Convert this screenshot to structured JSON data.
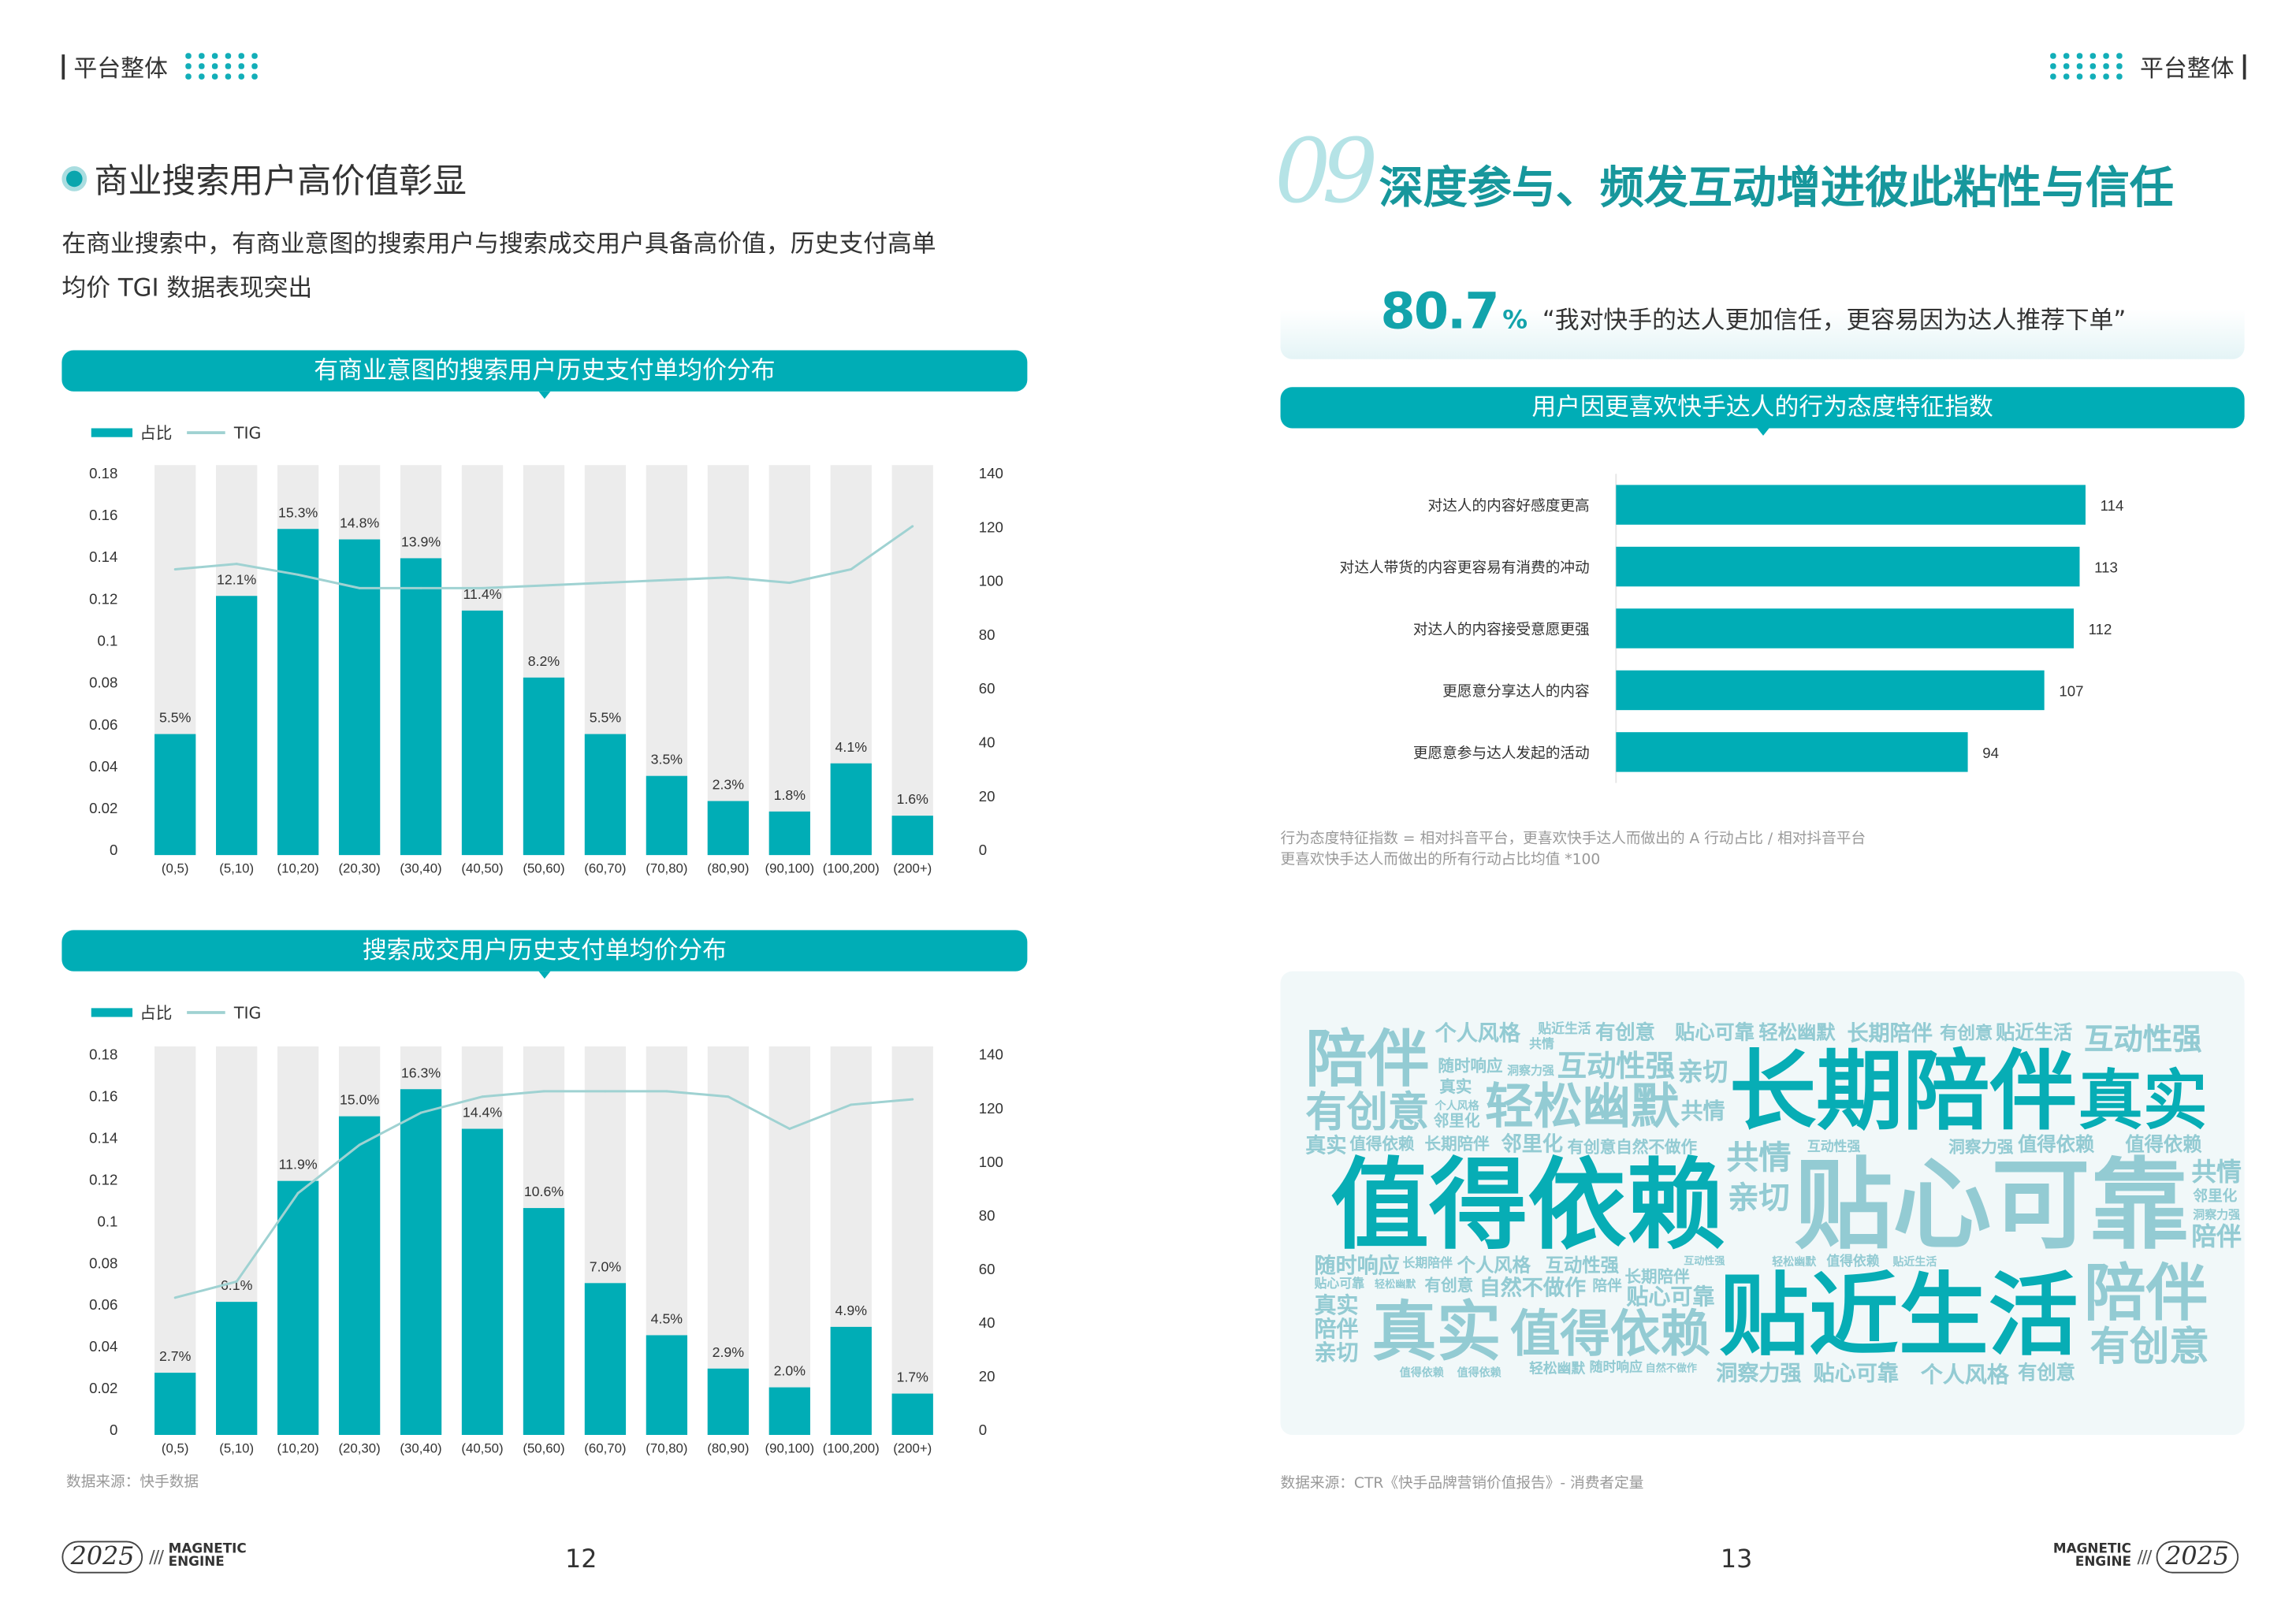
{
  "colors": {
    "accent": "#00adb6",
    "bar_bg": "#ececec",
    "tig_line": "#9fd2d2",
    "title_dark": "#17979c",
    "cloud_dark": "#07adb5",
    "cloud_light": "#93cbd3"
  },
  "left_page": {
    "header": {
      "section": "平台整体"
    },
    "heading": "商业搜索用户高价值彰显",
    "intro": [
      "在商业搜索中，有商业意图的搜索用户与搜索成交用户具备高价值，历史支付高单",
      "均价 TGI 数据表现突出"
    ],
    "source": "数据来源：快手数据",
    "page_number": "12",
    "logo": {
      "year": "2025",
      "slashes": "///",
      "line1": "MAGNETIC",
      "line2": "ENGINE"
    }
  },
  "right_page": {
    "header": {
      "section": "平台整体"
    },
    "number": "09",
    "title": "深度参与、频发互动增进彼此粘性与信任",
    "stat": {
      "value": "80.7",
      "unit": "%",
      "quote": "“我对快手的达人更加信任，更容易因为达人推荐下单”"
    },
    "footnote": [
      "行为态度特征指数 = 相对抖音平台，更喜欢快手达人而做出的 A 行动占比 / 相对抖音平台",
      "更喜欢快手达人而做出的所有行动占比均值 *100"
    ],
    "source": "数据来源：CTR《快手品牌营销价值报告》- 消费者定量",
    "page_number": "13",
    "logo": {
      "year": "2025",
      "slashes": "///",
      "line1": "MAGNETIC",
      "line2": "ENGINE"
    },
    "word_cloud": [
      {
        "t": "陪伴",
        "c": "light"
      },
      {
        "t": "个人风格",
        "c": "light"
      },
      {
        "t": "贴近生活",
        "c": "light"
      },
      {
        "t": "有创意",
        "c": "light"
      },
      {
        "t": "贴心可靠",
        "c": "light"
      },
      {
        "t": "轻松幽默",
        "c": "light"
      },
      {
        "t": "长期陪伴",
        "c": "light"
      },
      {
        "t": "有创意",
        "c": "light"
      },
      {
        "t": "贴近生活",
        "c": "light"
      },
      {
        "t": "互动性强",
        "c": "light"
      },
      {
        "t": "共情",
        "c": "light"
      },
      {
        "t": "互动性强",
        "c": "light"
      },
      {
        "t": "随时响应",
        "c": "light"
      },
      {
        "t": "洞察力强",
        "c": "light"
      },
      {
        "t": "亲切",
        "c": "light"
      },
      {
        "t": "长期陪伴",
        "c": "dark"
      },
      {
        "t": "真实",
        "c": "dark"
      },
      {
        "t": "真实",
        "c": "light"
      },
      {
        "t": "有创意",
        "c": "light"
      },
      {
        "t": "个人风格",
        "c": "light"
      },
      {
        "t": "邻里化",
        "c": "light"
      },
      {
        "t": "轻松幽默",
        "c": "light"
      },
      {
        "t": "共情",
        "c": "light"
      },
      {
        "t": "真实",
        "c": "light"
      },
      {
        "t": "值得依赖",
        "c": "light"
      },
      {
        "t": "长期陪伴",
        "c": "light"
      },
      {
        "t": "邻里化",
        "c": "light"
      },
      {
        "t": "有创意自然不做作",
        "c": "light"
      },
      {
        "t": "值得依赖",
        "c": "dark"
      },
      {
        "t": "共情",
        "c": "light"
      },
      {
        "t": "互动性强",
        "c": "light"
      },
      {
        "t": "共情",
        "c": "light"
      },
      {
        "t": "洞察力强",
        "c": "light"
      },
      {
        "t": "值得依赖",
        "c": "light"
      },
      {
        "t": "值得依赖",
        "c": "light"
      },
      {
        "t": "贴心可靠",
        "c": "light"
      },
      {
        "t": "亲切",
        "c": "light"
      },
      {
        "t": "陪伴",
        "c": "light"
      },
      {
        "t": "邻里化",
        "c": "light"
      },
      {
        "t": "洞察力强",
        "c": "light"
      },
      {
        "t": "随时响应",
        "c": "light"
      },
      {
        "t": "长期陪伴",
        "c": "light"
      },
      {
        "t": "个人风格",
        "c": "light"
      },
      {
        "t": "互动性强",
        "c": "light"
      },
      {
        "t": "互动性强",
        "c": "light"
      },
      {
        "t": "轻松幽默",
        "c": "light"
      },
      {
        "t": "值得依赖",
        "c": "light"
      },
      {
        "t": "贴近生活",
        "c": "light"
      },
      {
        "t": "长期陪伴",
        "c": "light"
      },
      {
        "t": "贴心可靠",
        "c": "light"
      },
      {
        "t": "轻松幽默",
        "c": "light"
      },
      {
        "t": "有创意",
        "c": "light"
      },
      {
        "t": "自然不做作",
        "c": "light"
      },
      {
        "t": "陪伴",
        "c": "light"
      },
      {
        "t": "贴心可靠",
        "c": "light"
      },
      {
        "t": "贴近生活",
        "c": "dark"
      },
      {
        "t": "陪伴",
        "c": "light"
      },
      {
        "t": "真实",
        "c": "light"
      },
      {
        "t": "真实",
        "c": "light"
      },
      {
        "t": "值得依赖",
        "c": "light"
      },
      {
        "t": "陪伴",
        "c": "light"
      },
      {
        "t": "有创意",
        "c": "light"
      },
      {
        "t": "亲切",
        "c": "light"
      },
      {
        "t": "值得依赖",
        "c": "light"
      },
      {
        "t": "值得依赖",
        "c": "light"
      },
      {
        "t": "轻松幽默",
        "c": "light"
      },
      {
        "t": "随时响应",
        "c": "light"
      },
      {
        "t": "自然不做作",
        "c": "light"
      },
      {
        "t": "洞察力强",
        "c": "light"
      },
      {
        "t": "贴心可靠",
        "c": "light"
      },
      {
        "t": "个人风格",
        "c": "light"
      },
      {
        "t": "有创意",
        "c": "light"
      }
    ]
  },
  "chart_data": [
    {
      "type": "bar",
      "title": "有商业意图的搜索用户历史支付单均价分布",
      "legend": [
        "占比",
        "TIG"
      ],
      "legend_position": "top-left",
      "categories": [
        "(0,5)",
        "(5,10)",
        "(10,20)",
        "(20,30)",
        "(30,40)",
        "(40,50)",
        "(50,60)",
        "(60,70)",
        "(70,80)",
        "(80,90)",
        "(90,100)",
        "(100,200)",
        "(200+)"
      ],
      "series": [
        {
          "name": "占比",
          "type": "bar",
          "axis": "left",
          "values": [
            0.055,
            0.121,
            0.153,
            0.148,
            0.139,
            0.114,
            0.082,
            0.055,
            0.035,
            0.023,
            0.018,
            0.041,
            0.016
          ],
          "labels": [
            "5.5%",
            "12.1%",
            "15.3%",
            "14.8%",
            "13.9%",
            "11.4%",
            "8.2%",
            "5.5%",
            "3.5%",
            "2.3%",
            "1.8%",
            "4.1%",
            "1.6%"
          ]
        },
        {
          "name": "TIG",
          "type": "line",
          "axis": "right",
          "values": [
            104,
            106,
            102,
            97,
            97,
            97,
            98,
            99,
            100,
            101,
            99,
            104,
            120
          ]
        }
      ],
      "y_left": {
        "range": [
          0,
          0.18
        ],
        "ticks": [
          "0",
          "0.02",
          "0.04",
          "0.06",
          "0.08",
          "0.1",
          "0.12",
          "0.14",
          "0.16",
          "0.18"
        ]
      },
      "y_right": {
        "range": [
          0,
          140
        ],
        "ticks": [
          "0",
          "20",
          "40",
          "60",
          "80",
          "100",
          "120",
          "140"
        ]
      },
      "grid": false
    },
    {
      "type": "bar",
      "title": "搜索成交用户历史支付单均价分布",
      "legend": [
        "占比",
        "TIG"
      ],
      "legend_position": "top-left",
      "categories": [
        "(0,5)",
        "(5,10)",
        "(10,20)",
        "(20,30)",
        "(30,40)",
        "(40,50)",
        "(50,60)",
        "(60,70)",
        "(70,80)",
        "(80,90)",
        "(90,100)",
        "(100,200)",
        "(200+)"
      ],
      "series": [
        {
          "name": "占比",
          "type": "bar",
          "axis": "left",
          "values": [
            0.027,
            0.061,
            0.119,
            0.15,
            0.163,
            0.144,
            0.106,
            0.07,
            0.045,
            0.029,
            0.02,
            0.049,
            0.017
          ],
          "labels": [
            "2.7%",
            "6.1%",
            "11.9%",
            "15.0%",
            "16.3%",
            "14.4%",
            "10.6%",
            "7.0%",
            "4.5%",
            "2.9%",
            "2.0%",
            "4.9%",
            "1.7%"
          ]
        },
        {
          "name": "TIG",
          "type": "line",
          "axis": "right",
          "values": [
            49,
            55,
            88,
            106,
            118,
            124,
            126,
            126,
            126,
            124,
            112,
            121,
            123
          ]
        }
      ],
      "y_left": {
        "range": [
          0,
          0.18
        ],
        "ticks": [
          "0",
          "0.02",
          "0.04",
          "0.06",
          "0.08",
          "0.1",
          "0.12",
          "0.14",
          "0.16",
          "0.18"
        ]
      },
      "y_right": {
        "range": [
          0,
          140
        ],
        "ticks": [
          "0",
          "20",
          "40",
          "60",
          "80",
          "100",
          "120",
          "140"
        ]
      },
      "grid": false
    },
    {
      "type": "bar",
      "orientation": "horizontal",
      "title": "用户因更喜欢快手达人的行为态度特征指数",
      "categories": [
        "对达人的内容好感度更高",
        "对达人带货的内容更容易有消费的冲动",
        "对达人的内容接受意愿更强",
        "更愿意分享达人的内容",
        "更愿意参与达人发起的活动"
      ],
      "values": [
        114,
        113,
        112,
        107,
        94
      ],
      "grid": false
    }
  ]
}
